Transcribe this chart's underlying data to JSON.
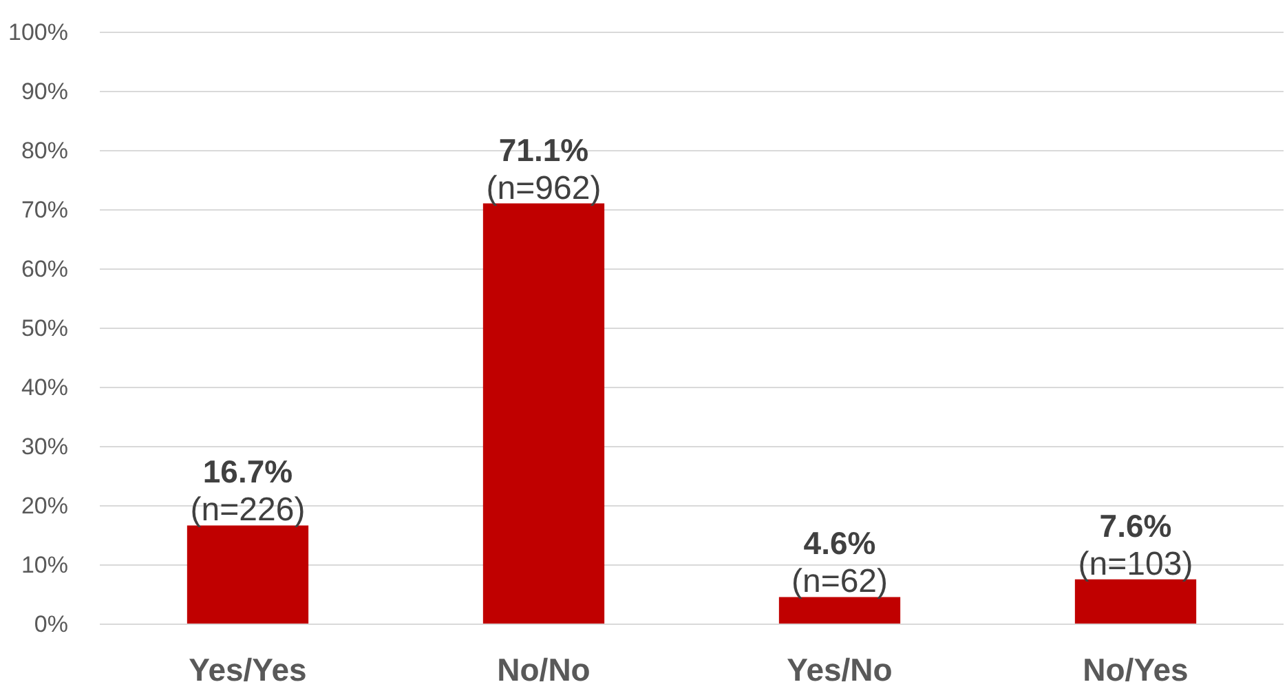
{
  "chart_data": {
    "type": "bar",
    "categories": [
      "Yes/Yes",
      "No/No",
      "Yes/No",
      "No/Yes"
    ],
    "values": [
      16.7,
      71.1,
      4.6,
      7.6
    ],
    "color": "#c00000",
    "value_labels": [
      "16.7%\n(n=226)",
      "71.1%\n(n=962)",
      "4.6%\n(n=62)",
      "7.6%\n(n=103)"
    ],
    "ylim": [
      0,
      100
    ],
    "yticks": [
      {
        "value": 0,
        "label": "0%"
      },
      {
        "value": 10,
        "label": "10%"
      },
      {
        "value": 20,
        "label": "20%"
      },
      {
        "value": 30,
        "label": "30%"
      },
      {
        "value": 40,
        "label": "40%"
      },
      {
        "value": 50,
        "label": "50%"
      },
      {
        "value": 60,
        "label": "60%"
      },
      {
        "value": 70,
        "label": "70%"
      },
      {
        "value": 80,
        "label": "80%"
      },
      {
        "value": 90,
        "label": "90%"
      },
      {
        "value": 100,
        "label": "100%"
      }
    ],
    "grid": "y"
  }
}
